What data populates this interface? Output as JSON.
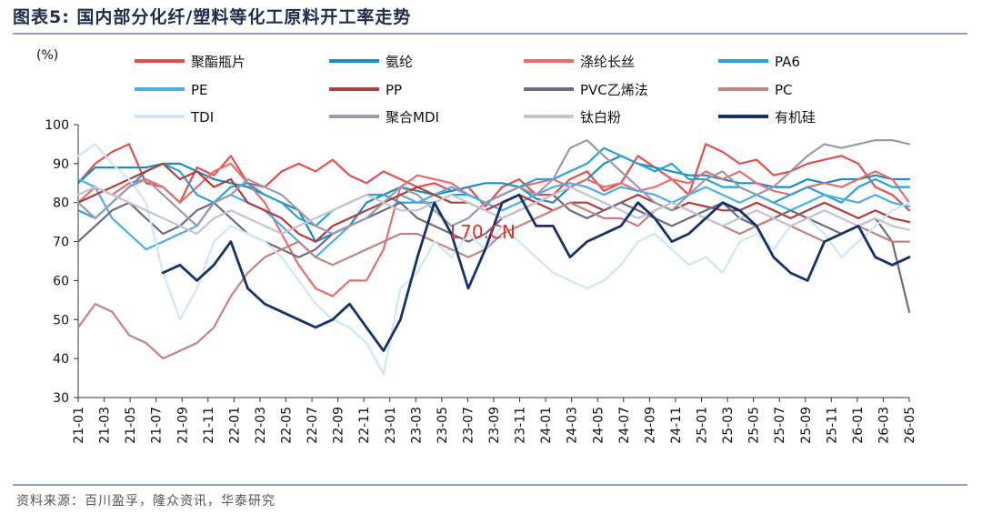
{
  "header": {
    "title": "图表5:   国内部分化纤/塑料等化工原料开工率走势"
  },
  "footer": {
    "source": "资料来源：百川盈孚，隆众资讯，华泰研究"
  },
  "watermark": "L70.CN",
  "chart_data": {
    "type": "line",
    "ylabel": "(%)",
    "ylim": [
      30,
      100
    ],
    "yticks": [
      30,
      40,
      50,
      60,
      70,
      80,
      90,
      100
    ],
    "xticks": [
      "21-01",
      "21-03",
      "21-05",
      "21-07",
      "21-09",
      "21-11",
      "22-01",
      "22-03",
      "22-05",
      "22-07",
      "22-09",
      "22-11",
      "23-01",
      "23-03",
      "23-05",
      "23-07",
      "23-09",
      "23-11",
      "24-01",
      "24-03",
      "24-05",
      "24-07",
      "24-09",
      "24-11",
      "25-01",
      "25-03",
      "25-05",
      "25-07",
      "25-09",
      "25-11",
      "26-01",
      "26-03",
      "26-05"
    ],
    "legend_position": "top",
    "series": [
      {
        "name": "聚酯瓶片",
        "color": "#e0504f",
        "width": 2.2,
        "values": [
          85,
          90,
          93,
          95,
          85,
          84,
          80,
          89,
          87,
          92,
          85,
          84,
          88,
          90,
          88,
          91,
          87,
          85,
          88,
          86,
          84,
          85,
          83,
          84,
          79,
          84,
          86,
          82,
          82,
          86,
          88,
          83,
          85,
          92,
          89,
          86,
          82,
          95,
          93,
          90,
          91,
          87,
          88,
          90,
          91,
          92,
          90,
          84,
          82,
          78
        ]
      },
      {
        "name": "氨纶",
        "color": "#1a8fc0",
        "width": 2.2,
        "values": [
          85,
          89,
          89,
          89,
          89,
          90,
          90,
          88,
          86,
          85,
          84,
          82,
          80,
          78,
          70,
          72,
          74,
          80,
          82,
          84,
          83,
          82,
          83,
          84,
          85,
          85,
          84,
          81,
          80,
          84,
          86,
          90,
          92,
          90,
          89,
          88,
          87,
          87,
          86,
          85,
          85,
          84,
          84,
          86,
          85,
          86,
          86,
          87,
          86,
          86
        ]
      },
      {
        "name": "涤纶长丝",
        "color": "#ea6d6d",
        "width": 2.2,
        "values": [
          80,
          84,
          82,
          85,
          86,
          84,
          80,
          84,
          88,
          90,
          85,
          80,
          72,
          64,
          58,
          56,
          60,
          60,
          68,
          84,
          87,
          86,
          85,
          82,
          80,
          82,
          84,
          85,
          86,
          84,
          86,
          84,
          85,
          83,
          84,
          86,
          85,
          88,
          86,
          88,
          85,
          83,
          82,
          84,
          85,
          84,
          86,
          88,
          86,
          80
        ]
      },
      {
        "name": "PA6",
        "color": "#28a3d9",
        "width": 2.2,
        "values": [
          78,
          76,
          80,
          84,
          88,
          90,
          88,
          82,
          80,
          84,
          85,
          82,
          80,
          76,
          74,
          78,
          80,
          82,
          82,
          80,
          80,
          80,
          82,
          82,
          80,
          82,
          84,
          86,
          86,
          88,
          90,
          94,
          92,
          90,
          88,
          90,
          86,
          86,
          84,
          84,
          82,
          80,
          82,
          84,
          82,
          80,
          84,
          86,
          84,
          84
        ]
      },
      {
        "name": "PE",
        "color": "#4aaee8",
        "width": 2.2,
        "values": [
          86,
          84,
          76,
          72,
          68,
          70,
          72,
          74,
          80,
          82,
          80,
          78,
          74,
          70,
          66,
          70,
          74,
          76,
          80,
          82,
          80,
          82,
          84,
          82,
          80,
          78,
          80,
          82,
          84,
          85,
          84,
          82,
          84,
          83,
          82,
          80,
          82,
          84,
          82,
          80,
          82,
          80,
          78,
          80,
          82,
          81,
          80,
          82,
          80,
          79
        ]
      },
      {
        "name": "PP",
        "color": "#b03c3c",
        "width": 2.2,
        "values": [
          80,
          82,
          84,
          86,
          88,
          90,
          86,
          88,
          84,
          86,
          80,
          78,
          76,
          72,
          70,
          74,
          76,
          78,
          80,
          82,
          84,
          82,
          80,
          80,
          78,
          80,
          82,
          80,
          78,
          80,
          80,
          78,
          80,
          82,
          80,
          78,
          80,
          79,
          78,
          78,
          80,
          78,
          76,
          78,
          80,
          78,
          76,
          78,
          76,
          75
        ]
      },
      {
        "name": "PVC乙烯法",
        "color": "#6c6c84",
        "width": 2.2,
        "values": [
          70,
          74,
          78,
          80,
          76,
          72,
          74,
          78,
          80,
          76,
          72,
          70,
          68,
          66,
          68,
          72,
          74,
          76,
          78,
          80,
          76,
          74,
          72,
          70,
          72,
          76,
          78,
          80,
          82,
          78,
          76,
          78,
          80,
          78,
          76,
          74,
          76,
          78,
          80,
          76,
          74,
          76,
          78,
          76,
          74,
          72,
          74,
          76,
          70,
          52
        ]
      },
      {
        "name": "PC",
        "color": "#c98080",
        "width": 2.2,
        "values": [
          48,
          54,
          52,
          46,
          44,
          40,
          42,
          44,
          48,
          56,
          62,
          66,
          68,
          70,
          66,
          64,
          66,
          68,
          70,
          72,
          72,
          70,
          68,
          66,
          68,
          72,
          74,
          76,
          78,
          80,
          78,
          76,
          76,
          74,
          78,
          80,
          78,
          76,
          74,
          72,
          74,
          76,
          74,
          72,
          70,
          72,
          74,
          72,
          70,
          70
        ]
      },
      {
        "name": "TDI",
        "color": "#cde7f5",
        "width": 2.2,
        "values": [
          92,
          95,
          90,
          86,
          80,
          62,
          50,
          58,
          70,
          74,
          72,
          70,
          66,
          60,
          54,
          50,
          48,
          44,
          36,
          58,
          62,
          70,
          66,
          72,
          68,
          74,
          70,
          66,
          62,
          60,
          58,
          60,
          64,
          70,
          72,
          68,
          64,
          66,
          62,
          70,
          72,
          68,
          74,
          76,
          72,
          66,
          70,
          74,
          78,
          80
        ]
      },
      {
        "name": "聚合MDI",
        "color": "#9a9aac",
        "width": 2.2,
        "values": [
          80,
          76,
          80,
          84,
          86,
          82,
          78,
          74,
          80,
          82,
          86,
          84,
          82,
          78,
          74,
          72,
          74,
          76,
          80,
          84,
          82,
          78,
          74,
          76,
          80,
          82,
          84,
          82,
          86,
          94,
          96,
          92,
          88,
          84,
          80,
          78,
          82,
          86,
          88,
          84,
          82,
          84,
          88,
          92,
          95,
          94,
          95,
          96,
          96,
          95
        ]
      },
      {
        "name": "钛白粉",
        "color": "#c5c3d0",
        "width": 2.2,
        "values": [
          82,
          84,
          82,
          80,
          78,
          76,
          74,
          72,
          76,
          78,
          76,
          74,
          72,
          74,
          76,
          78,
          80,
          82,
          80,
          78,
          78,
          80,
          82,
          80,
          78,
          76,
          78,
          80,
          82,
          84,
          82,
          80,
          78,
          76,
          78,
          80,
          78,
          76,
          74,
          76,
          78,
          76,
          74,
          76,
          78,
          76,
          74,
          76,
          74,
          73
        ]
      },
      {
        "name": "有机硅",
        "color": "#15336b",
        "width": 2.8,
        "values": [
          null,
          null,
          null,
          null,
          null,
          62,
          64,
          60,
          64,
          70,
          58,
          54,
          52,
          50,
          48,
          50,
          54,
          48,
          42,
          50,
          66,
          80,
          72,
          58,
          68,
          80,
          82,
          74,
          74,
          66,
          70,
          72,
          74,
          80,
          76,
          70,
          72,
          76,
          80,
          78,
          74,
          66,
          62,
          60,
          70,
          72,
          74,
          66,
          64,
          66
        ]
      }
    ]
  }
}
